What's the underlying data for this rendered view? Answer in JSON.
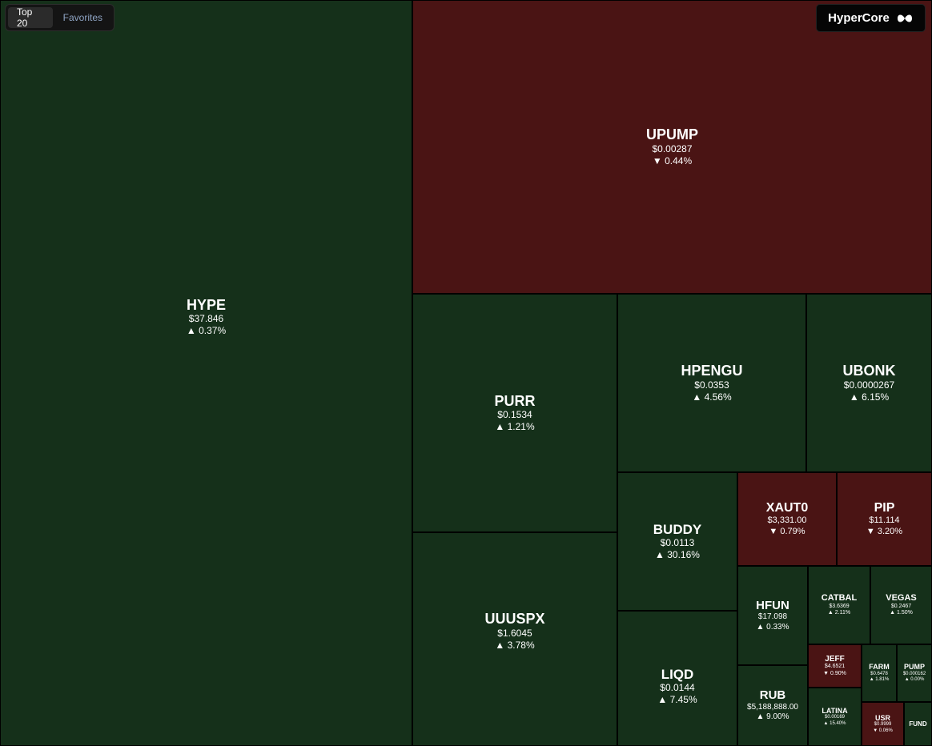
{
  "tabs": [
    "Top 20",
    "Favorites"
  ],
  "brand": "HyperCore",
  "tiles": [
    {
      "symbol": "HYPE",
      "price": "$37.846",
      "change": "▲ 0.37%",
      "color": "#15301a"
    },
    {
      "symbol": "UPUMP",
      "price": "$0.00287",
      "change": "▼ 0.44%",
      "color": "#4a1414"
    },
    {
      "symbol": "PURR",
      "price": "$0.1534",
      "change": "▲ 1.21%",
      "color": "#15301a"
    },
    {
      "symbol": "UUUSPX",
      "price": "$1.6045",
      "change": "▲ 3.78%",
      "color": "#15301a"
    },
    {
      "symbol": "HPENGU",
      "price": "$0.0353",
      "change": "▲ 4.56%",
      "color": "#15301a"
    },
    {
      "symbol": "UBONK",
      "price": "$0.0000267",
      "change": "▲ 6.15%",
      "color": "#15301a"
    },
    {
      "symbol": "BUDDY",
      "price": "$0.0113",
      "change": "▲ 30.16%",
      "color": "#15301a"
    },
    {
      "symbol": "LIQD",
      "price": "$0.0144",
      "change": "▲ 7.45%",
      "color": "#15301a"
    },
    {
      "symbol": "XAUT0",
      "price": "$3,331.00",
      "change": "▼ 0.79%",
      "color": "#4a1414"
    },
    {
      "symbol": "PIP",
      "price": "$11.114",
      "change": "▼ 3.20%",
      "color": "#4a1414"
    },
    {
      "symbol": "HFUN",
      "price": "$17.098",
      "change": "▲ 0.33%",
      "color": "#15301a"
    },
    {
      "symbol": "RUB",
      "price": "$5,188,888.00",
      "change": "▲ 9.00%",
      "color": "#15301a"
    },
    {
      "symbol": "CATBAL",
      "price": "$3.6369",
      "change": "▲ 2.11%",
      "color": "#15301a"
    },
    {
      "symbol": "VEGAS",
      "price": "$0.2467",
      "change": "▲ 1.50%",
      "color": "#15301a"
    },
    {
      "symbol": "JEFF",
      "price": "$4.6521",
      "change": "▼ 0.90%",
      "color": "#4a1414"
    },
    {
      "symbol": "FARM",
      "price": "$0.6478",
      "change": "▲ 1.81%",
      "color": "#15301a"
    },
    {
      "symbol": "PUMP",
      "price": "$0.000162",
      "change": "▲ 0.00%",
      "color": "#15301a"
    },
    {
      "symbol": "LATINA",
      "price": "$0.00169",
      "change": "▲ 15.40%",
      "color": "#15301a"
    },
    {
      "symbol": "USR",
      "price": "$0.9999",
      "change": "▼ 0.06%",
      "color": "#4a1414"
    },
    {
      "symbol": "FUND",
      "price": "",
      "change": "",
      "color": "#15301a"
    }
  ]
}
